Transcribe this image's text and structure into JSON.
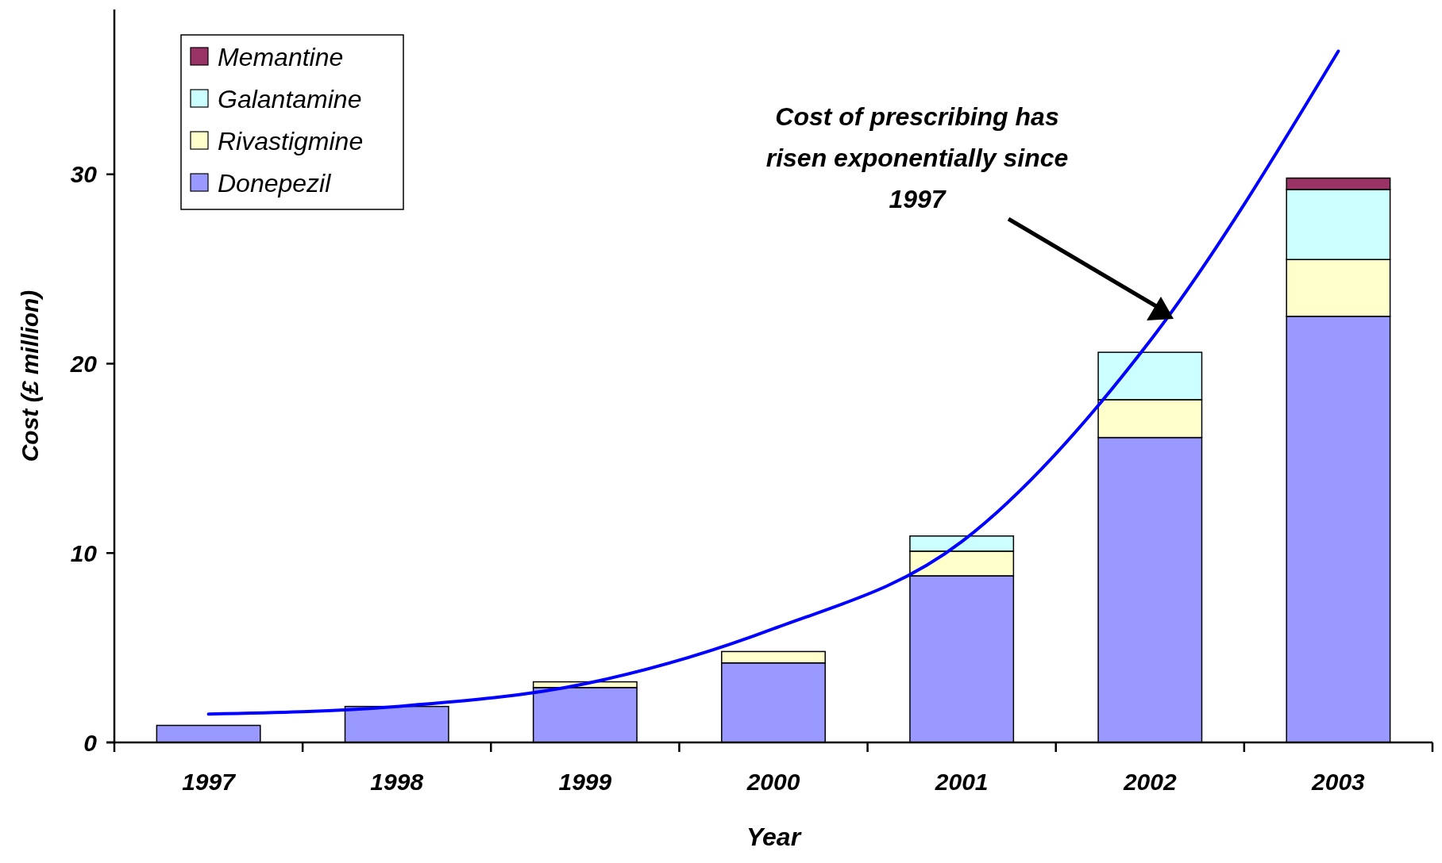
{
  "chart_data": {
    "type": "bar",
    "stacked": true,
    "xlabel": "Year",
    "ylabel": "Cost (£ million)",
    "categories": [
      "1997",
      "1998",
      "1999",
      "2000",
      "2001",
      "2002",
      "2003"
    ],
    "series": [
      {
        "name": "Donepezil",
        "color": "#9999ff",
        "values": [
          0.9,
          1.9,
          2.9,
          4.2,
          8.8,
          16.1,
          22.5
        ]
      },
      {
        "name": "Rivastigmine",
        "color": "#ffffcc",
        "values": [
          null,
          null,
          0.3,
          0.6,
          1.3,
          2.0,
          3.0
        ]
      },
      {
        "name": "Galantamine",
        "color": "#ccffff",
        "values": [
          null,
          null,
          null,
          null,
          0.8,
          2.5,
          3.7
        ]
      },
      {
        "name": "Memantine",
        "color": "#993366",
        "values": [
          null,
          null,
          null,
          null,
          null,
          null,
          0.6
        ]
      },
      {
        "type": "line",
        "color": "#0000ff",
        "values": [
          1.5,
          1.9,
          3.1,
          6.0,
          10.6,
          21.2,
          36.5
        ]
      }
    ],
    "ylim": [
      0,
      38.7
    ],
    "yticks": [
      0,
      10,
      20,
      30
    ],
    "grid": false,
    "legend": "top left",
    "annotations": [
      "Cost of prescribing has risen exponentially since 1997"
    ]
  }
}
